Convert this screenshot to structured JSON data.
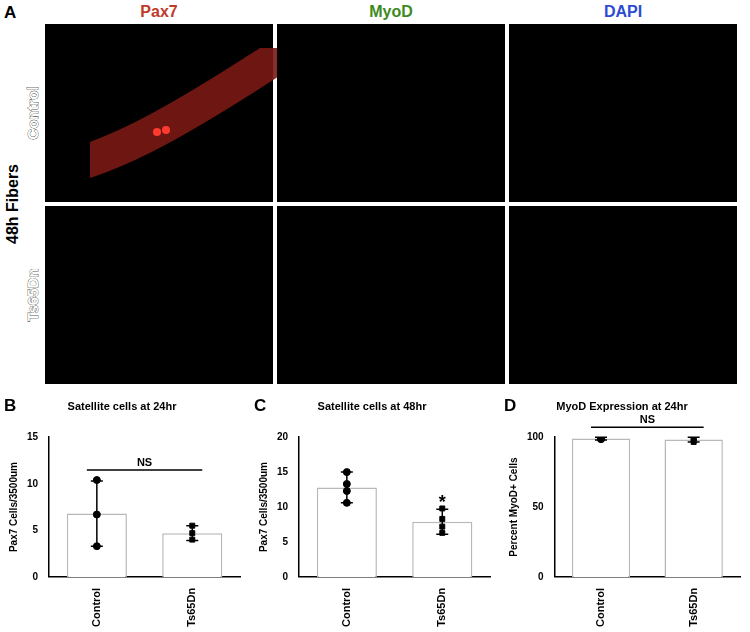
{
  "panel_a": {
    "label": "A",
    "row_group": "48h Fibers",
    "rows": [
      "Control",
      "Ts65Dn"
    ],
    "columns": [
      {
        "name": "Pax7",
        "color": "#c0392b"
      },
      {
        "name": "MyoD",
        "color": "#3d8a1f"
      },
      {
        "name": "DAPI",
        "color": "#2b4bd4"
      }
    ]
  },
  "chart_data": [
    {
      "panel": "B",
      "type": "bar",
      "title": "Satellite cells at 24hr",
      "y_label": "Pax7 Cells/3500um",
      "categories": [
        "Control",
        "Ts65Dn"
      ],
      "ylim": [
        0,
        15
      ],
      "yticks": [
        0,
        5,
        10,
        15
      ],
      "grid": false,
      "series": [
        {
          "type": "bar",
          "color": "#ffffff",
          "values": [
            6.8,
            4.7
          ],
          "errors": [
            3.5,
            0.8
          ]
        },
        {
          "type": "scatter",
          "marker": "circle",
          "x": [
            "Control",
            "Control",
            "Control"
          ],
          "values": [
            10.4,
            6.7,
            3.3
          ]
        },
        {
          "type": "scatter",
          "marker": "square",
          "x": [
            "Ts65Dn",
            "Ts65Dn",
            "Ts65Dn"
          ],
          "values": [
            5.5,
            4.7,
            4.0
          ]
        }
      ],
      "annotations": [
        {
          "text": "NS",
          "span": [
            "Control",
            "Ts65Dn"
          ]
        }
      ]
    },
    {
      "panel": "C",
      "type": "bar",
      "title": "Satellite cells at 48hr",
      "y_label": "Pax7 Cells/3500um",
      "categories": [
        "Control",
        "Ts65Dn"
      ],
      "ylim": [
        0,
        20
      ],
      "yticks": [
        0,
        5,
        10,
        15,
        20
      ],
      "grid": false,
      "series": [
        {
          "type": "bar",
          "color": "#ffffff",
          "values": [
            12.8,
            7.9
          ],
          "errors": [
            2.2,
            1.8
          ]
        },
        {
          "type": "scatter",
          "marker": "circle",
          "x": [
            "Control",
            "Control",
            "Control",
            "Control"
          ],
          "values": [
            15.0,
            13.3,
            12.3,
            10.6
          ]
        },
        {
          "type": "scatter",
          "marker": "square",
          "x": [
            "Ts65Dn",
            "Ts65Dn",
            "Ts65Dn",
            "Ts65Dn"
          ],
          "values": [
            9.8,
            8.3,
            7.2,
            6.3
          ]
        }
      ],
      "annotations": [
        {
          "text": "*",
          "span": [
            "Ts65Dn"
          ]
        }
      ]
    },
    {
      "panel": "D",
      "type": "bar",
      "title": "MyoD Expression at 24hr",
      "y_label": "Percent MyoD+ Cells",
      "categories": [
        "Control",
        "Ts65Dn"
      ],
      "ylim": [
        0,
        100
      ],
      "yticks": [
        0,
        50,
        100
      ],
      "grid": false,
      "series": [
        {
          "type": "bar",
          "color": "#ffffff",
          "values": [
            99,
            98.3
          ],
          "errors": [
            1,
            1.7
          ]
        },
        {
          "type": "scatter",
          "marker": "circle",
          "x": [
            "Control",
            "Control",
            "Control"
          ],
          "values": [
            99.5,
            98.6,
            99.0
          ]
        },
        {
          "type": "scatter",
          "marker": "square",
          "x": [
            "Ts65Dn",
            "Ts65Dn",
            "Ts65Dn"
          ],
          "values": [
            100,
            96.6,
            98.2
          ]
        }
      ],
      "annotations": [
        {
          "text": "NS",
          "span": [
            "Control",
            "Ts65Dn"
          ]
        }
      ]
    }
  ]
}
